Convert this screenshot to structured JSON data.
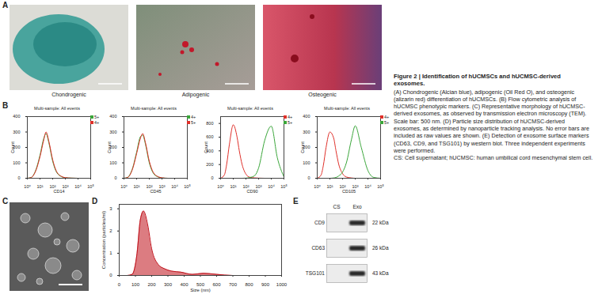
{
  "figure": {
    "panels": {
      "A": {
        "letter": "A",
        "images": [
          "Chondrogenic",
          "Adipogenic",
          "Osteogenic"
        ]
      },
      "B": {
        "letter": "B"
      },
      "C": {
        "letter": "C"
      },
      "D": {
        "letter": "D"
      },
      "E": {
        "letter": "E",
        "columns": [
          "CS",
          "Exo"
        ],
        "rows": [
          {
            "label": "CD9",
            "size": "22 kDa"
          },
          {
            "label": "CD63",
            "size": "26 kDa"
          },
          {
            "label": "TSG101",
            "size": "43 kDa"
          }
        ]
      }
    }
  },
  "chart_data": [
    {
      "type": "line",
      "title": "Multi-sample: All events",
      "xlabel": "CD14",
      "ylabel": "Count",
      "log": "x",
      "x": [
        1,
        2,
        3,
        5,
        10,
        20,
        30,
        50,
        100,
        200,
        500,
        1000,
        3000,
        10000,
        30000,
        100000
      ],
      "xlim": [
        1,
        100000
      ],
      "xticks": [
        {
          "value": 1,
          "label": "10⁰"
        },
        {
          "value": 10,
          "label": "10¹"
        },
        {
          "value": 100,
          "label": "10²"
        },
        {
          "value": 1000,
          "label": "10³"
        },
        {
          "value": 10000,
          "label": "10⁴"
        },
        {
          "value": 100000,
          "label": "10⁵"
        }
      ],
      "ylim": [
        0,
        400
      ],
      "yticks": [
        0,
        100,
        200,
        300,
        400
      ],
      "legend": "top-right",
      "series": [
        {
          "name": "5+",
          "color": "#3aa63a",
          "values": [
            0,
            5,
            20,
            60,
            150,
            260,
            290,
            230,
            110,
            40,
            10,
            3,
            1,
            0,
            0,
            0
          ]
        },
        {
          "name": "4+",
          "color": "#e0302a",
          "values": [
            0,
            4,
            18,
            55,
            140,
            250,
            300,
            240,
            120,
            45,
            12,
            4,
            1,
            0,
            0,
            0
          ]
        }
      ]
    },
    {
      "type": "line",
      "title": "Multi-sample: All events",
      "xlabel": "CD45",
      "ylabel": "Count",
      "log": "x",
      "x": [
        1,
        2,
        3,
        5,
        10,
        20,
        30,
        50,
        100,
        200,
        500,
        1000,
        3000,
        10000,
        30000,
        100000
      ],
      "xlim": [
        1,
        100000
      ],
      "xticks": [
        {
          "value": 1,
          "label": "10⁰"
        },
        {
          "value": 10,
          "label": "10¹"
        },
        {
          "value": 100,
          "label": "10²"
        },
        {
          "value": 1000,
          "label": "10³"
        },
        {
          "value": 10000,
          "label": "10⁴"
        },
        {
          "value": 100000,
          "label": "10⁵"
        }
      ],
      "ylim": [
        0,
        400
      ],
      "yticks": [
        0,
        100,
        200,
        300,
        400
      ],
      "legend": "top-right",
      "series": [
        {
          "name": "4+",
          "color": "#3aa63a",
          "values": [
            0,
            6,
            25,
            70,
            170,
            270,
            280,
            220,
            100,
            35,
            8,
            2,
            0,
            0,
            0,
            0
          ]
        },
        {
          "name": "5+",
          "color": "#e0302a",
          "values": [
            0,
            5,
            22,
            65,
            160,
            260,
            290,
            230,
            110,
            40,
            10,
            3,
            0,
            0,
            0,
            0
          ]
        }
      ]
    },
    {
      "type": "line",
      "title": "Multi-sample: All events",
      "xlabel": "CD90",
      "ylabel": "Count",
      "log": "x",
      "x": [
        1,
        2,
        3,
        5,
        10,
        20,
        30,
        50,
        100,
        200,
        500,
        1000,
        3000,
        10000,
        30000,
        100000
      ],
      "xlim": [
        1,
        100000
      ],
      "xticks": [
        {
          "value": 1,
          "label": "10⁰"
        },
        {
          "value": 10,
          "label": "10¹"
        },
        {
          "value": 100,
          "label": "10²"
        },
        {
          "value": 1000,
          "label": "10³"
        },
        {
          "value": 10000,
          "label": "10⁴"
        },
        {
          "value": 100000,
          "label": "10⁵"
        }
      ],
      "ylim": [
        0,
        900
      ],
      "yticks": [
        0,
        200,
        400,
        600,
        800
      ],
      "legend": "top-right",
      "series": [
        {
          "name": "4+",
          "color": "#e0302a",
          "values": [
            0,
            50,
            200,
            500,
            780,
            600,
            400,
            200,
            60,
            15,
            5,
            2,
            0,
            0,
            0,
            0
          ]
        },
        {
          "name": "5+",
          "color": "#3aa63a",
          "values": [
            0,
            0,
            0,
            0,
            0,
            0,
            0,
            0,
            2,
            10,
            40,
            150,
            550,
            760,
            300,
            20
          ]
        }
      ]
    },
    {
      "type": "line",
      "title": "Multi-sample: All events",
      "xlabel": "CD105",
      "ylabel": "Count",
      "log": "x",
      "x": [
        1,
        2,
        3,
        5,
        10,
        20,
        30,
        50,
        100,
        200,
        500,
        1000,
        3000,
        10000,
        30000,
        100000
      ],
      "xlim": [
        1,
        100000
      ],
      "xticks": [
        {
          "value": 1,
          "label": "10⁰"
        },
        {
          "value": 10,
          "label": "10¹"
        },
        {
          "value": 100,
          "label": "10²"
        },
        {
          "value": 1000,
          "label": "10³"
        },
        {
          "value": 10000,
          "label": "10⁴"
        },
        {
          "value": 100000,
          "label": "10⁵"
        }
      ],
      "ylim": [
        0,
        400
      ],
      "yticks": [
        0,
        100,
        200,
        300,
        400
      ],
      "legend": "top-right",
      "series": [
        {
          "name": "4+",
          "color": "#e0302a",
          "values": [
            0,
            20,
            80,
            200,
            300,
            260,
            180,
            90,
            30,
            8,
            2,
            0,
            0,
            0,
            0,
            0
          ]
        },
        {
          "name": "5+",
          "color": "#3aa63a",
          "values": [
            0,
            0,
            0,
            0,
            0,
            2,
            5,
            15,
            40,
            100,
            250,
            340,
            200,
            50,
            5,
            0
          ]
        }
      ]
    },
    {
      "type": "area",
      "xlabel": "Size (nm)",
      "ylabel": "Concentration (particles/ml)",
      "x": [
        0,
        50,
        80,
        110,
        130,
        150,
        175,
        200,
        240,
        280,
        320,
        380,
        450,
        520,
        600,
        700,
        1000
      ],
      "values": [
        0,
        0,
        0.05,
        1.0,
        2.5,
        2.9,
        2.3,
        1.2,
        0.5,
        0.3,
        0.2,
        0.15,
        0.05,
        0.1,
        0.05,
        0,
        0
      ],
      "xlim": [
        0,
        1000
      ],
      "xticks": [
        0,
        100,
        200,
        300,
        400,
        500,
        600,
        700,
        800,
        900,
        1000
      ],
      "ylim": [
        0,
        3.2
      ],
      "yticks": [
        0,
        1,
        2,
        3
      ],
      "color": "#c0101a"
    }
  ],
  "caption": {
    "title": "Figure 2 | Identification of hUCMSCs and hUCMSC-derived exosomes.",
    "body": [
      "(A) Chondrogenic (Alcian blue), adipogenic (Oil Red O), and osteogenic (alizarin red) differentiation of hUCMSCs. (B) Flow cytometric analysis of hUCMSC phenotypic markers. (C) Representative morphology of hUCMSC-derived exosomes, as observed by transmission electron microscopy (TEM). Scale bar: 500 nm. (D) Particle size distribution of hUCMSC-derived exosomes, as determined by nanoparticle tracking analysis. No error bars are included as raw values are shown. (E) Detection of exosome surface markers (CD63, CD9, and TSG101) by western blot. Three independent experiments were performed.",
      "CS: Cell supernatant; hUCMSC: human umbilical cord mesenchymal stem cell."
    ]
  }
}
